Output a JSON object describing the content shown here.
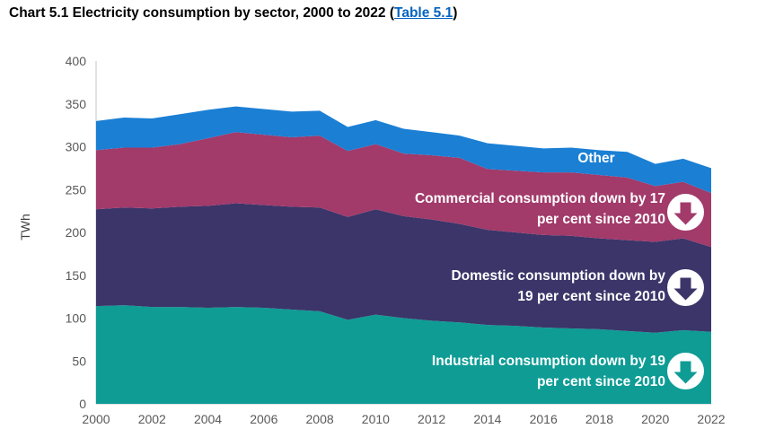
{
  "title": {
    "prefix": "Chart 5.1 Electricity consumption by sector, 2000 to 2022 (",
    "link": "Table 5.1",
    "suffix": ")"
  },
  "colors": {
    "industrial": "#0E9C95",
    "domestic": "#3B3569",
    "commercial": "#A23A6A",
    "other": "#1B7FD4",
    "link": "#0563C1",
    "axis_text": "#595959",
    "axis_line": "#D6D6D6"
  },
  "chart_data": {
    "type": "area",
    "stacked": true,
    "title": "Chart 5.1 Electricity consumption by sector, 2000 to 2022",
    "xlabel": "",
    "ylabel": "TWh",
    "ylim": [
      0,
      400
    ],
    "yticks": [
      0,
      50,
      100,
      150,
      200,
      250,
      300,
      350,
      400
    ],
    "xticks": [
      2000,
      2002,
      2004,
      2006,
      2008,
      2010,
      2012,
      2014,
      2016,
      2018,
      2020,
      2022
    ],
    "grid": false,
    "legend_position": "none",
    "x": [
      2000,
      2001,
      2002,
      2003,
      2004,
      2005,
      2006,
      2007,
      2008,
      2009,
      2010,
      2011,
      2012,
      2013,
      2014,
      2015,
      2016,
      2017,
      2018,
      2019,
      2020,
      2021,
      2022
    ],
    "series": [
      {
        "name": "Industrial",
        "color": "#0E9C95",
        "values": [
          114,
          115,
          113,
          113,
          112,
          113,
          112,
          110,
          108,
          98,
          104,
          100,
          97,
          95,
          92,
          91,
          89,
          88,
          87,
          85,
          83,
          86,
          84
        ]
      },
      {
        "name": "Domestic",
        "color": "#3B3569",
        "values": [
          113,
          114,
          115,
          117,
          119,
          121,
          120,
          120,
          121,
          120,
          123,
          119,
          118,
          115,
          111,
          109,
          108,
          108,
          106,
          106,
          106,
          107,
          99
        ]
      },
      {
        "name": "Commercial",
        "color": "#A23A6A",
        "values": [
          69,
          70,
          71,
          73,
          79,
          83,
          82,
          81,
          84,
          77,
          76,
          73,
          75,
          77,
          71,
          72,
          73,
          74,
          74,
          73,
          65,
          66,
          63
        ]
      },
      {
        "name": "Other",
        "color": "#1B7FD4",
        "values": [
          34,
          35,
          34,
          35,
          33,
          30,
          30,
          30,
          29,
          28,
          28,
          29,
          27,
          26,
          30,
          29,
          28,
          29,
          29,
          30,
          26,
          27,
          29
        ]
      }
    ]
  },
  "annotations": {
    "other_label": "Other",
    "commercial": {
      "line1": "Commercial consumption down by 17",
      "line2": "per cent since 2010"
    },
    "domestic": {
      "line1": "Domestic consumption down by",
      "line2": "19 per cent since 2010"
    },
    "industrial": {
      "line1": "Industrial consumption down by 19",
      "line2": "per cent since 2010"
    },
    "arrow_icon": "down-arrow"
  }
}
